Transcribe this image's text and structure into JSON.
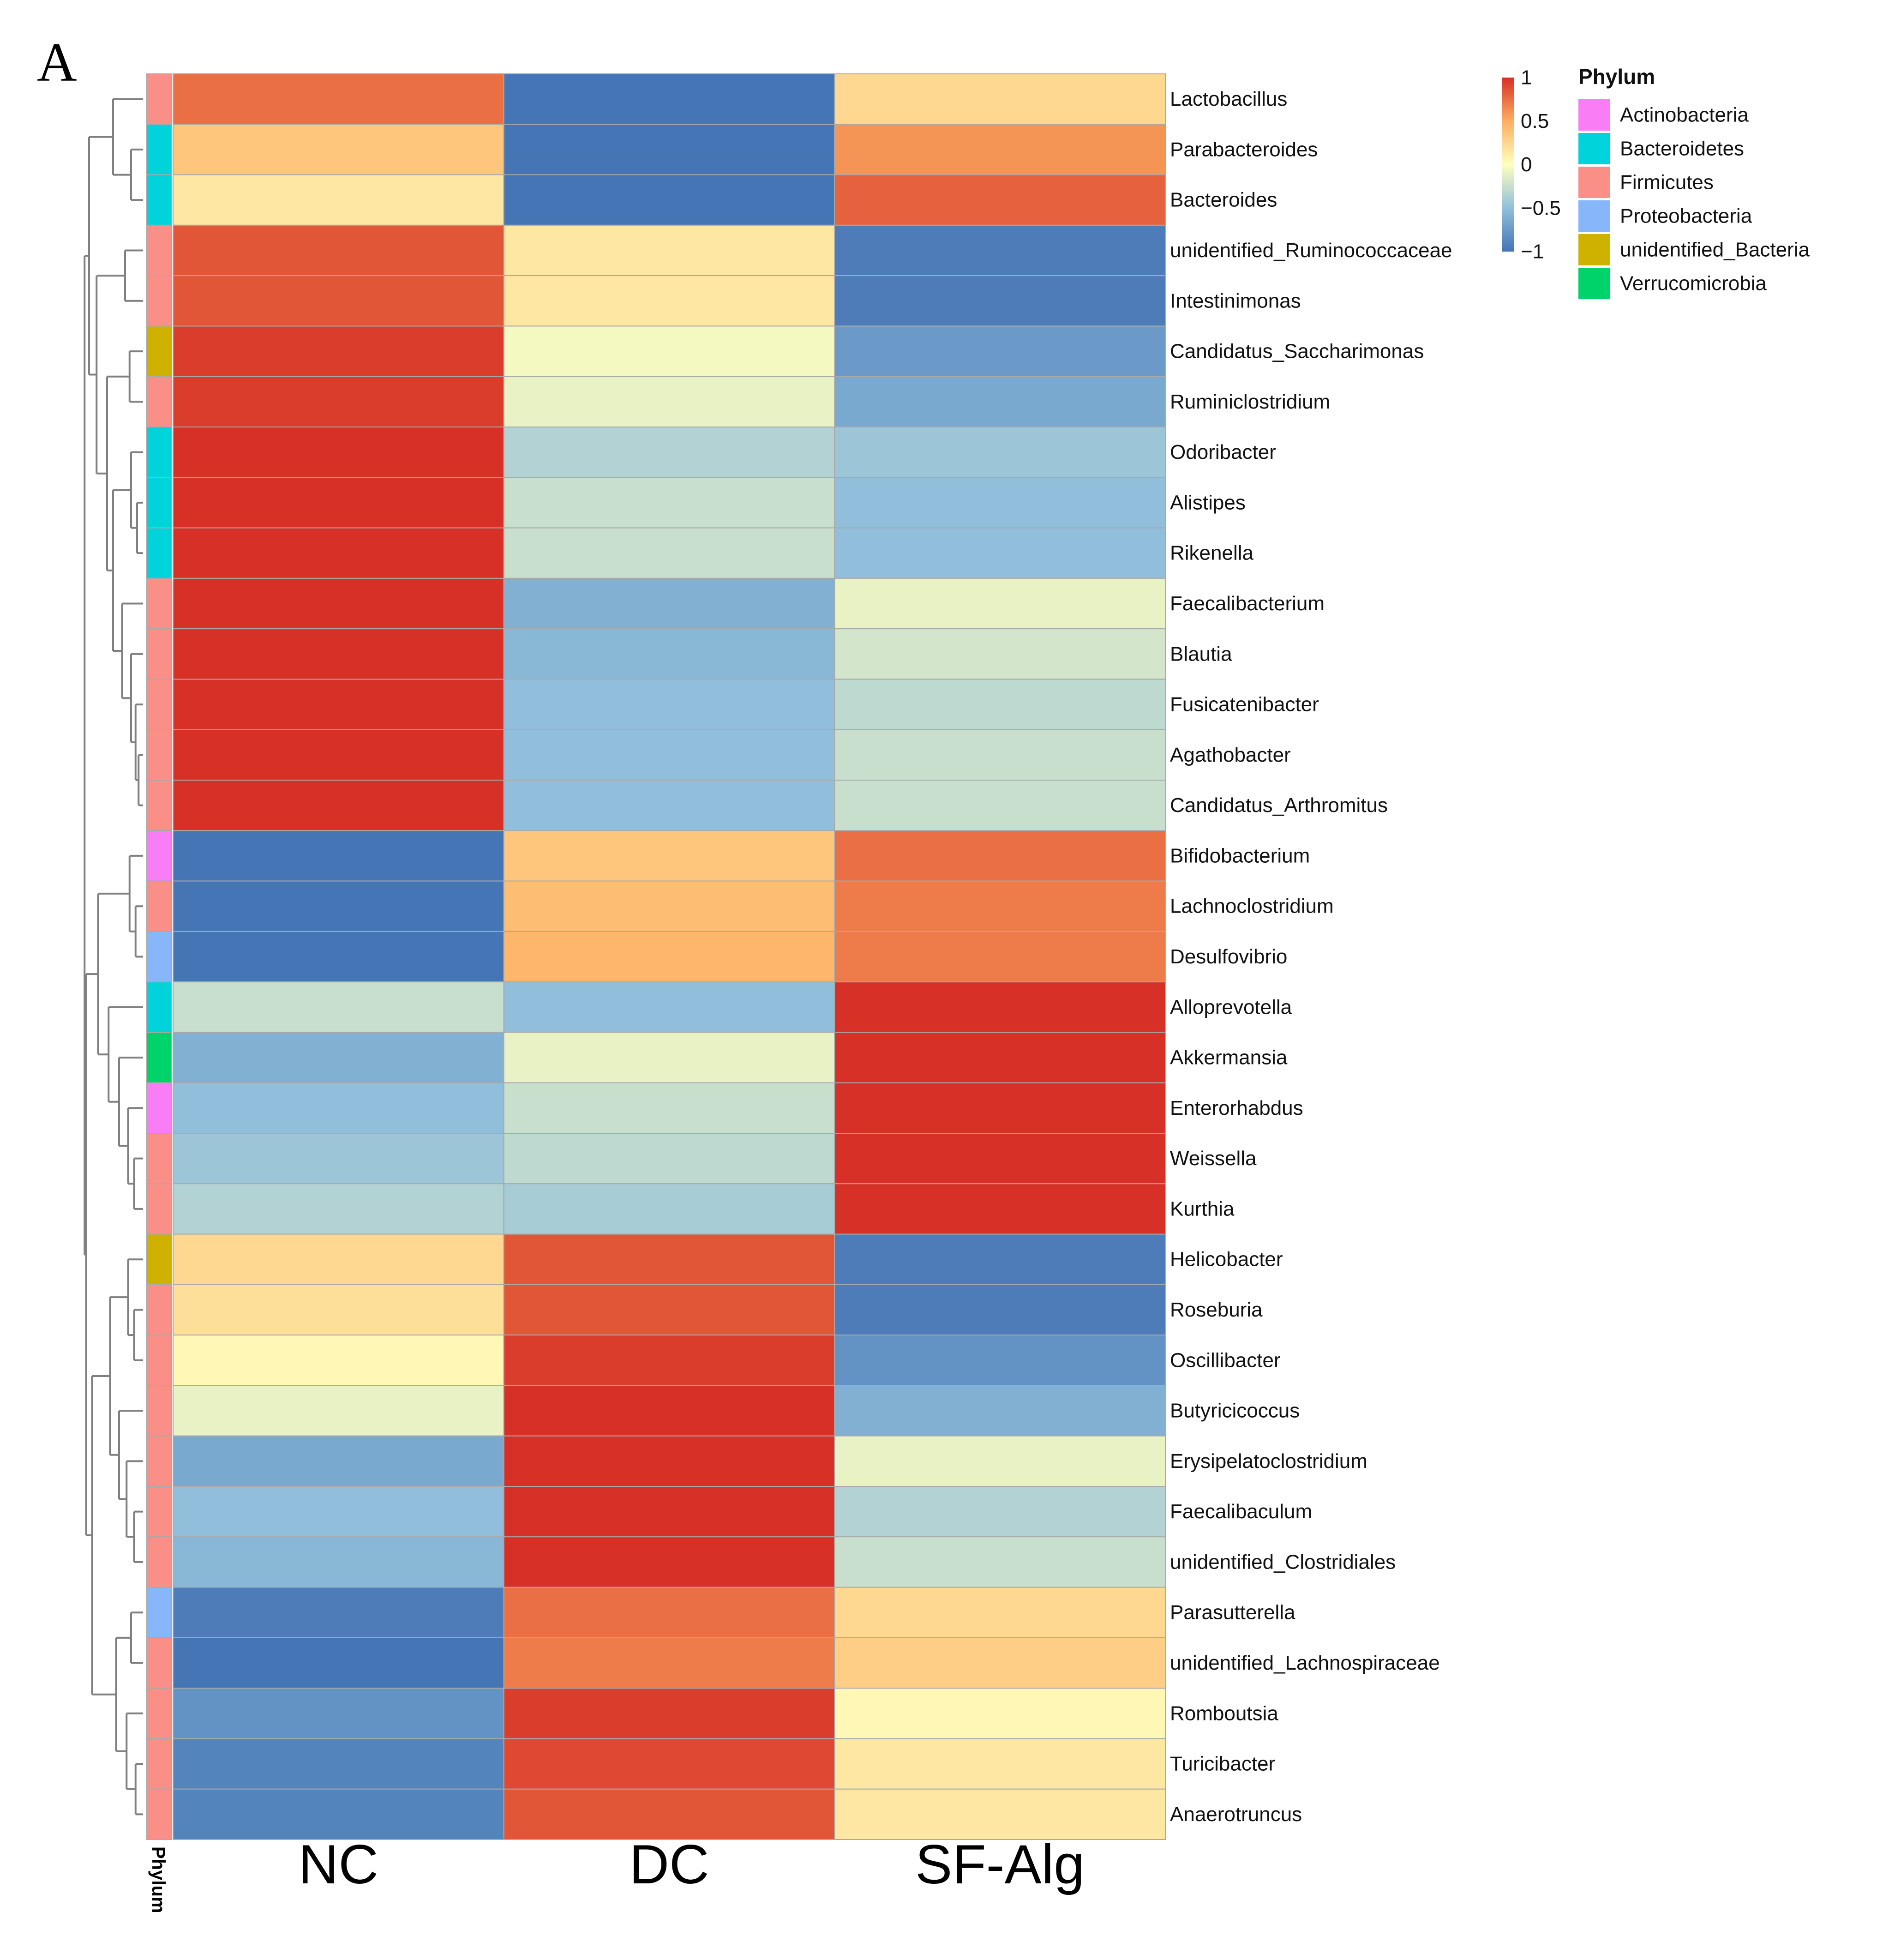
{
  "panel_label": "A",
  "chart_data": {
    "type": "heatmap",
    "title": "",
    "columns": [
      "NC",
      "DC",
      "SF-Alg"
    ],
    "annotation_label": "Phylum",
    "rows": [
      {
        "genus": "Lactobacillus",
        "phylum": "Firmicutes",
        "values": [
          0.75,
          -1.0,
          0.25
        ]
      },
      {
        "genus": "Parabacteroides",
        "phylum": "Bacteroidetes",
        "values": [
          0.35,
          -1.05,
          0.6
        ]
      },
      {
        "genus": "Bacteroides",
        "phylum": "Bacteroidetes",
        "values": [
          0.15,
          -1.0,
          0.8
        ]
      },
      {
        "genus": "unidentified_Ruminococcaceae",
        "phylum": "Firmicutes",
        "values": [
          0.85,
          0.15,
          -0.95
        ]
      },
      {
        "genus": "Intestinimonas",
        "phylum": "Firmicutes",
        "values": [
          0.85,
          0.15,
          -0.95
        ]
      },
      {
        "genus": "Candidatus_Saccharimonas",
        "phylum": "unidentified_Bacteria",
        "values": [
          0.95,
          -0.05,
          -0.75
        ]
      },
      {
        "genus": "Ruminiclostridium",
        "phylum": "Firmicutes",
        "values": [
          0.95,
          -0.1,
          -0.65
        ]
      },
      {
        "genus": "Odoribacter",
        "phylum": "Bacteroidetes",
        "values": [
          1.0,
          -0.35,
          -0.45
        ]
      },
      {
        "genus": "Alistipes",
        "phylum": "Bacteroidetes",
        "values": [
          1.0,
          -0.25,
          -0.5
        ]
      },
      {
        "genus": "Rikenella",
        "phylum": "Bacteroidetes",
        "values": [
          1.0,
          -0.25,
          -0.5
        ]
      },
      {
        "genus": "Faecalibacterium",
        "phylum": "Firmicutes",
        "values": [
          1.0,
          -0.6,
          -0.1
        ]
      },
      {
        "genus": "Blautia",
        "phylum": "Firmicutes",
        "values": [
          1.0,
          -0.55,
          -0.2
        ]
      },
      {
        "genus": "Fusicatenibacter",
        "phylum": "Firmicutes",
        "values": [
          1.0,
          -0.5,
          -0.3
        ]
      },
      {
        "genus": "Agathobacter",
        "phylum": "Firmicutes",
        "values": [
          1.0,
          -0.5,
          -0.25
        ]
      },
      {
        "genus": "Candidatus_Arthromitus",
        "phylum": "Firmicutes",
        "values": [
          1.0,
          -0.5,
          -0.25
        ]
      },
      {
        "genus": "Bifidobacterium",
        "phylum": "Actinobacteria",
        "values": [
          -1.05,
          0.35,
          0.75
        ]
      },
      {
        "genus": "Lachnoclostridium",
        "phylum": "Firmicutes",
        "values": [
          -1.05,
          0.4,
          0.7
        ]
      },
      {
        "genus": "Desulfovibrio",
        "phylum": "Proteobacteria",
        "values": [
          -1.05,
          0.45,
          0.7
        ]
      },
      {
        "genus": "Alloprevotella",
        "phylum": "Bacteroidetes",
        "values": [
          -0.25,
          -0.5,
          1.0
        ]
      },
      {
        "genus": "Akkermansia",
        "phylum": "Verrucomicrobia",
        "values": [
          -0.6,
          -0.1,
          1.0
        ]
      },
      {
        "genus": "Enterorhabdus",
        "phylum": "Actinobacteria",
        "values": [
          -0.5,
          -0.25,
          1.0
        ]
      },
      {
        "genus": "Weissella",
        "phylum": "Firmicutes",
        "values": [
          -0.45,
          -0.3,
          1.0
        ]
      },
      {
        "genus": "Kurthia",
        "phylum": "Firmicutes",
        "values": [
          -0.35,
          -0.4,
          1.0
        ]
      },
      {
        "genus": "Helicobacter",
        "phylum": "unidentified_Bacteria",
        "values": [
          0.25,
          0.85,
          -0.95
        ]
      },
      {
        "genus": "Roseburia",
        "phylum": "Firmicutes",
        "values": [
          0.2,
          0.85,
          -0.95
        ]
      },
      {
        "genus": "Oscillibacter",
        "phylum": "Firmicutes",
        "values": [
          0.05,
          0.95,
          -0.8
        ]
      },
      {
        "genus": "Butyricicoccus",
        "phylum": "Firmicutes",
        "values": [
          -0.1,
          1.0,
          -0.6
        ]
      },
      {
        "genus": "Erysipelatoclostridium",
        "phylum": "Firmicutes",
        "values": [
          -0.65,
          1.0,
          -0.1
        ]
      },
      {
        "genus": "Faecalibaculum",
        "phylum": "Firmicutes",
        "values": [
          -0.5,
          1.0,
          -0.35
        ]
      },
      {
        "genus": "unidentified_Clostridiales",
        "phylum": "Firmicutes",
        "values": [
          -0.55,
          1.0,
          -0.25
        ]
      },
      {
        "genus": "Parasutterella",
        "phylum": "Proteobacteria",
        "values": [
          -0.95,
          0.75,
          0.25
        ]
      },
      {
        "genus": "unidentified_Lachnospiraceae",
        "phylum": "Firmicutes",
        "values": [
          -1.0,
          0.7,
          0.3
        ]
      },
      {
        "genus": "Romboutsia",
        "phylum": "Firmicutes",
        "values": [
          -0.8,
          0.95,
          0.05
        ]
      },
      {
        "genus": "Turicibacter",
        "phylum": "Firmicutes",
        "values": [
          -0.9,
          0.9,
          0.15
        ]
      },
      {
        "genus": "Anaerotruncus",
        "phylum": "Firmicutes",
        "values": [
          -0.9,
          0.85,
          0.15
        ]
      }
    ],
    "color_scale": {
      "min": -1,
      "max": 1,
      "stops": [
        {
          "value": -1,
          "color": "#4575b4"
        },
        {
          "value": -0.5,
          "color": "#91bfdb"
        },
        {
          "value": 0,
          "color": "#ffffbf"
        },
        {
          "value": 0.5,
          "color": "#fdae61"
        },
        {
          "value": 1,
          "color": "#d73027"
        }
      ],
      "tick_labels": [
        "1",
        "0.5",
        "0",
        "−0.5",
        "−1"
      ],
      "tick_values": [
        1,
        0.5,
        0,
        -0.5,
        -1
      ]
    },
    "legend": {
      "title": "Phylum",
      "entries": [
        {
          "label": "Actinobacteria",
          "color": "#f97ef5"
        },
        {
          "label": "Bacteroidetes",
          "color": "#00d4da"
        },
        {
          "label": "Firmicutes",
          "color": "#fa8f88"
        },
        {
          "label": "Proteobacteria",
          "color": "#88b6fb"
        },
        {
          "label": "unidentified_Bacteria",
          "color": "#cfb100"
        },
        {
          "label": "Verrucomicrobia",
          "color": "#00d36a"
        }
      ]
    }
  }
}
